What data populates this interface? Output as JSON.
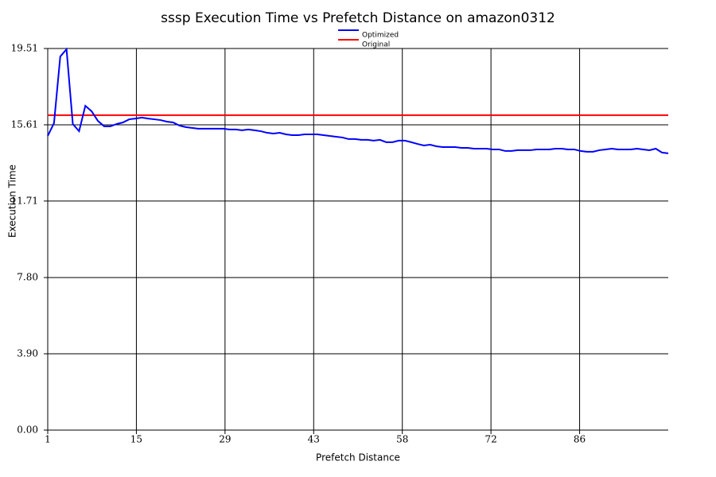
{
  "chart_data": {
    "type": "line",
    "title": "sssp Execution Time vs Prefetch Distance on amazon0312",
    "x_label": "Prefetch Distance",
    "y_label": "Execution Time",
    "xlim": [
      1,
      100
    ],
    "ylim": [
      0,
      19.51
    ],
    "xticks": [
      {
        "value": 1,
        "label": "1"
      },
      {
        "value": 15.142857,
        "label": "15"
      },
      {
        "value": 29.285714,
        "label": "29"
      },
      {
        "value": 43.428571,
        "label": "43"
      },
      {
        "value": 57.571429,
        "label": "58"
      },
      {
        "value": 71.714286,
        "label": "72"
      },
      {
        "value": 85.857143,
        "label": "86"
      }
    ],
    "yticks": [
      {
        "value": 0,
        "label": "0.00"
      },
      {
        "value": 3.9,
        "label": "3.90"
      },
      {
        "value": 7.8,
        "label": "7.80"
      },
      {
        "value": 11.71,
        "label": "11.71"
      },
      {
        "value": 15.61,
        "label": "15.61"
      },
      {
        "value": 19.51,
        "label": "19.51"
      }
    ],
    "grid": true,
    "series": [
      {
        "name": "Optimized",
        "color": "#0000ff",
        "x": [
          1,
          2,
          3,
          4,
          5,
          6,
          7,
          8,
          9,
          10,
          11,
          12,
          13,
          14,
          15,
          16,
          17,
          18,
          19,
          20,
          21,
          22,
          23,
          24,
          25,
          26,
          27,
          28,
          29,
          30,
          31,
          32,
          33,
          34,
          35,
          36,
          37,
          38,
          39,
          40,
          41,
          42,
          43,
          44,
          45,
          46,
          47,
          48,
          49,
          50,
          51,
          52,
          53,
          54,
          55,
          56,
          57,
          58,
          59,
          60,
          61,
          62,
          63,
          64,
          65,
          66,
          67,
          68,
          69,
          70,
          71,
          72,
          73,
          74,
          75,
          76,
          77,
          78,
          79,
          80,
          81,
          82,
          83,
          84,
          85,
          86,
          87,
          88,
          89,
          90,
          91,
          92,
          93,
          94,
          95,
          96,
          97,
          98,
          99,
          100
        ],
        "values": [
          15.04,
          15.69,
          19.1,
          19.47,
          15.65,
          15.28,
          16.58,
          16.3,
          15.81,
          15.53,
          15.53,
          15.65,
          15.73,
          15.89,
          15.93,
          15.98,
          15.93,
          15.89,
          15.85,
          15.77,
          15.73,
          15.57,
          15.49,
          15.45,
          15.41,
          15.41,
          15.41,
          15.41,
          15.41,
          15.37,
          15.37,
          15.33,
          15.37,
          15.33,
          15.28,
          15.2,
          15.16,
          15.2,
          15.12,
          15.08,
          15.08,
          15.12,
          15.12,
          15.12,
          15.08,
          15.04,
          15.0,
          14.96,
          14.88,
          14.88,
          14.84,
          14.84,
          14.8,
          14.84,
          14.72,
          14.72,
          14.8,
          14.8,
          14.72,
          14.63,
          14.55,
          14.59,
          14.51,
          14.47,
          14.47,
          14.47,
          14.43,
          14.43,
          14.39,
          14.39,
          14.39,
          14.35,
          14.35,
          14.27,
          14.27,
          14.31,
          14.31,
          14.31,
          14.35,
          14.35,
          14.35,
          14.39,
          14.39,
          14.35,
          14.35,
          14.27,
          14.23,
          14.23,
          14.31,
          14.35,
          14.39,
          14.35,
          14.35,
          14.35,
          14.39,
          14.35,
          14.31,
          14.39,
          14.19,
          14.15
        ]
      },
      {
        "name": "Original",
        "color": "#ff0000",
        "x": [
          1,
          100
        ],
        "values": [
          16.1,
          16.1
        ]
      }
    ]
  }
}
